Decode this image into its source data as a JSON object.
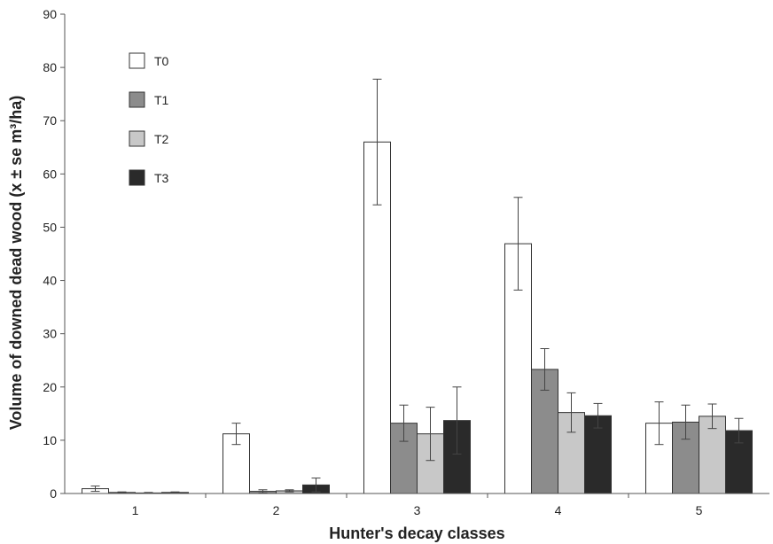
{
  "chart_data": {
    "type": "bar",
    "title": "",
    "xlabel": "Hunter's decay classes",
    "ylabel": "Volume of downed dead wood (x ± se m³/ha)",
    "ylim": [
      0,
      90
    ],
    "yticks": [
      0,
      10,
      20,
      30,
      40,
      50,
      60,
      70,
      80,
      90
    ],
    "categories": [
      "1",
      "2",
      "3",
      "4",
      "5"
    ],
    "error_bars": true,
    "grid": false,
    "legend_position": "top-left",
    "series": [
      {
        "name": "T0",
        "color": "#ffffff",
        "values": [
          0.9,
          11.2,
          66.0,
          46.9,
          13.2
        ],
        "errors": [
          0.5,
          2.0,
          11.8,
          8.7,
          4.0
        ]
      },
      {
        "name": "T1",
        "color": "#8c8c8c",
        "values": [
          0.2,
          0.4,
          13.2,
          23.3,
          13.4
        ],
        "errors": [
          0.1,
          0.3,
          3.4,
          3.9,
          3.2
        ]
      },
      {
        "name": "T2",
        "color": "#c8c8c8",
        "values": [
          0.1,
          0.5,
          11.2,
          15.2,
          14.5
        ],
        "errors": [
          0.1,
          0.2,
          5.0,
          3.7,
          2.3
        ]
      },
      {
        "name": "T3",
        "color": "#2a2a2a",
        "values": [
          0.2,
          1.6,
          13.7,
          14.6,
          11.8
        ],
        "errors": [
          0.1,
          1.3,
          6.3,
          2.3,
          2.3
        ]
      }
    ]
  }
}
